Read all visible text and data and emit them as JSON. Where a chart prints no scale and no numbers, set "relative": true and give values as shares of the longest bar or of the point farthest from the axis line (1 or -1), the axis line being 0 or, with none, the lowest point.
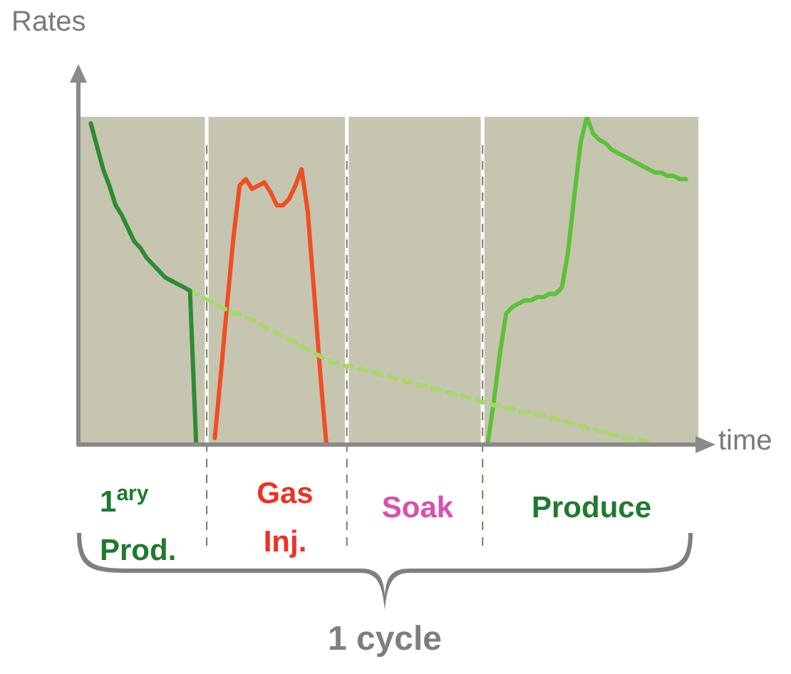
{
  "chart_data": {
    "type": "line",
    "relative": true,
    "ylabel": "Rates",
    "xlabel": "time",
    "legend": false,
    "marker": "none",
    "categories": [
      null,
      null,
      null,
      null,
      null,
      null,
      null,
      null,
      null,
      null,
      null,
      null,
      null,
      null,
      null,
      null,
      null,
      null,
      null,
      null,
      null,
      null,
      null,
      null,
      null,
      null,
      null,
      null,
      null,
      null,
      null,
      null,
      null,
      null,
      null,
      null,
      null,
      null,
      null,
      null,
      null,
      null,
      null,
      null,
      null,
      null,
      null,
      null,
      null,
      null,
      null,
      null,
      null,
      null,
      null,
      null,
      null,
      null,
      null,
      null,
      null,
      null,
      null,
      null,
      null,
      null,
      null,
      null,
      null,
      null,
      null,
      null,
      null,
      null,
      null,
      null,
      null,
      null,
      null,
      null,
      null,
      null,
      null,
      null,
      null,
      null,
      null,
      null,
      null,
      null,
      null,
      null,
      null,
      null,
      null,
      null,
      null,
      null,
      null,
      null,
      null
    ],
    "series": [
      {
        "color": "#2f8a34",
        "values": [
          null,
          null,
          0.98,
          0.91,
          0.84,
          0.79,
          0.73,
          0.7,
          0.66,
          0.62,
          0.6,
          0.57,
          0.55,
          0.53,
          0.51,
          0.5,
          0.49,
          0.48,
          0.47,
          0,
          null,
          null,
          null,
          null,
          null,
          null,
          null,
          null,
          null,
          null,
          null,
          null,
          null,
          null,
          null,
          null,
          null,
          null,
          null,
          null,
          null,
          null,
          null,
          null,
          null,
          null,
          null,
          null,
          null,
          null,
          null,
          null,
          null,
          null,
          null,
          null,
          null,
          null,
          null,
          null,
          null,
          null,
          null,
          null,
          null,
          null,
          null,
          null,
          null,
          null,
          null,
          null,
          null,
          null,
          null,
          null,
          null,
          null,
          null,
          null,
          null,
          null,
          null,
          null,
          null,
          null,
          null,
          null,
          null,
          null,
          null,
          null,
          null,
          null,
          null,
          null,
          null,
          null,
          null,
          null,
          null
        ]
      },
      {
        "color": "#a8d86a",
        "line_style": "dashed",
        "values": [
          null,
          null,
          null,
          null,
          null,
          null,
          null,
          null,
          null,
          null,
          null,
          null,
          null,
          null,
          null,
          null,
          null,
          null,
          0.47,
          0.46,
          0.45,
          0.44,
          0.43,
          0.42,
          0.41,
          0.4,
          0.4,
          0.39,
          0.38,
          0.37,
          0.36,
          0.35,
          0.34,
          0.33,
          0.32,
          0.31,
          0.3,
          0.29,
          0.28,
          0.27,
          0.26,
          0.25,
          0.25,
          0.24,
          0.24,
          0.23,
          0.23,
          0.22,
          0.22,
          0.21,
          0.21,
          0.2,
          0.2,
          0.19,
          0.19,
          0.18,
          0.18,
          0.17,
          0.17,
          0.16,
          0.16,
          0.15,
          0.15,
          0.14,
          0.14,
          0.13,
          0.13,
          0.12,
          0.12,
          0.11,
          0.11,
          0.1,
          0.1,
          0.1,
          0.09,
          0.09,
          0.08,
          0.08,
          0.07,
          0.07,
          0.06,
          0.06,
          0.05,
          0.05,
          0.04,
          0.04,
          0.03,
          0.03,
          0.02,
          0.02,
          0.02,
          0.01,
          0.01,
          null,
          null,
          null,
          null,
          null,
          null,
          null,
          null
        ]
      },
      {
        "color": "#f04e23",
        "values": [
          null,
          null,
          null,
          null,
          null,
          null,
          null,
          null,
          null,
          null,
          null,
          null,
          null,
          null,
          null,
          null,
          null,
          null,
          null,
          null,
          null,
          null,
          0.02,
          0.22,
          0.43,
          0.63,
          0.79,
          0.81,
          0.78,
          0.79,
          0.8,
          0.77,
          0.73,
          0.73,
          0.75,
          0.79,
          0.84,
          0.71,
          0.47,
          0.22,
          0,
          null,
          null,
          null,
          null,
          null,
          null,
          null,
          null,
          null,
          null,
          null,
          null,
          null,
          null,
          null,
          null,
          null,
          null,
          null,
          null,
          null,
          null,
          null,
          null,
          null,
          null,
          null,
          null,
          null,
          null,
          null,
          null,
          null,
          null,
          null,
          null,
          null,
          null,
          null,
          null,
          null,
          null,
          null,
          null,
          null,
          null,
          null,
          null,
          null,
          null,
          null,
          null,
          null,
          null,
          null,
          null,
          null,
          null,
          null,
          null
        ]
      },
      {
        "color": "#5cc13a",
        "values": [
          null,
          null,
          null,
          null,
          null,
          null,
          null,
          null,
          null,
          null,
          null,
          null,
          null,
          null,
          null,
          null,
          null,
          null,
          null,
          null,
          null,
          null,
          null,
          null,
          null,
          null,
          null,
          null,
          null,
          null,
          null,
          null,
          null,
          null,
          null,
          null,
          null,
          null,
          null,
          null,
          null,
          null,
          null,
          null,
          null,
          null,
          null,
          null,
          null,
          null,
          null,
          null,
          null,
          null,
          null,
          null,
          null,
          null,
          null,
          null,
          null,
          null,
          null,
          null,
          null,
          null,
          0,
          0.13,
          0.28,
          0.4,
          0.42,
          0.43,
          0.44,
          0.44,
          0.45,
          0.45,
          0.46,
          0.46,
          0.48,
          0.59,
          0.76,
          0.92,
          1,
          0.95,
          0.93,
          0.92,
          0.9,
          0.89,
          0.88,
          0.87,
          0.86,
          0.85,
          0.84,
          0.83,
          0.83,
          0.82,
          0.82,
          0.81,
          0.81,
          null,
          null
        ]
      }
    ],
    "annotations": [
      "1$^{ary}$\nProd.",
      "Gas\nInj.",
      "Soak",
      "Produce",
      "1 cycle"
    ]
  }
}
